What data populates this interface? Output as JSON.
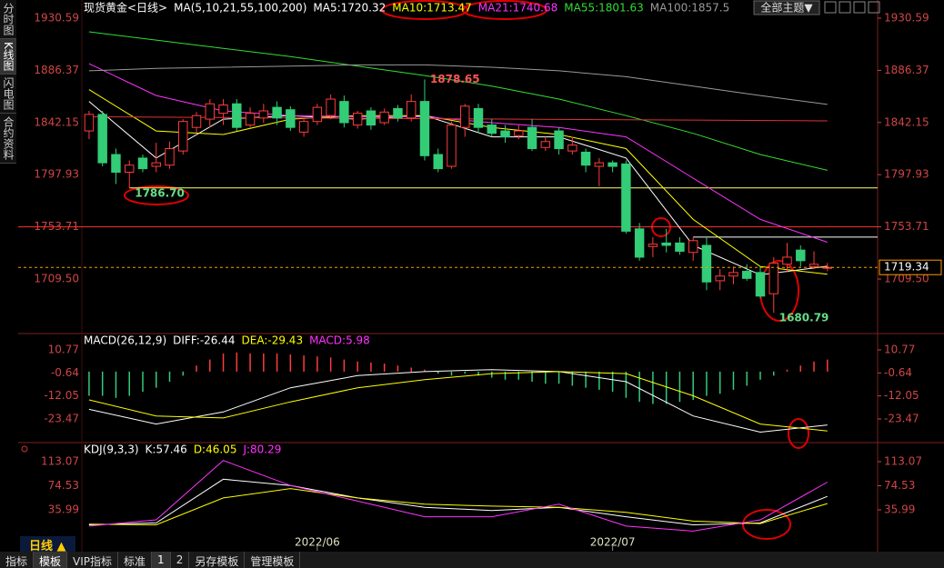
{
  "header": {
    "theme_button": "全部主题▼"
  },
  "sidebar": [
    "分时图",
    "K线图",
    "闪电图",
    "合约资料"
  ],
  "bottom": {
    "period": "日线 ▲",
    "tabs": [
      "指标",
      "模板",
      "VIP指标",
      "标准",
      "1",
      "2",
      "另存模板",
      "管理模板"
    ]
  },
  "chart_data": [
    {
      "type": "candlestick",
      "title": "现货黄金<日线>",
      "indicator": "MA(5,10,21,55,100,200)",
      "xlim": [
        -5.28,
        58.74
      ],
      "ylim": [
        1664.8,
        1938.29
      ],
      "yticks": [
        {
          "value": 1709.5,
          "label": "1709.50"
        },
        1753.71,
        1797.93,
        1842.15,
        1886.37,
        1930.59
      ],
      "xticks": [
        {
          "value": 17,
          "label": "2022/06"
        },
        {
          "value": 39,
          "label": "2022/07"
        }
      ],
      "up_color": "#ff3c3c",
      "down_color": "#33cc77",
      "open": [
        1835,
        1849,
        1815,
        1800,
        1812,
        1805,
        1806,
        1818,
        1838,
        1845,
        1850,
        1858,
        1840,
        1846,
        1855,
        1853,
        1834,
        1843,
        1848,
        1860,
        1840,
        1852,
        1842,
        1854,
        1846,
        1860,
        1815,
        1805,
        1838,
        1854,
        1840,
        1835,
        1831,
        1838,
        1821,
        1835,
        1818,
        1817,
        1805,
        1808,
        1807,
        1752,
        1737,
        1740,
        1740,
        1732,
        1738,
        1708,
        1712,
        1716,
        1715,
        1697,
        1722,
        1734,
        1720,
        1719
      ],
      "close": [
        1849,
        1808,
        1800,
        1806,
        1803,
        1808,
        1820,
        1843,
        1848,
        1858,
        1857,
        1838,
        1850,
        1852,
        1846,
        1838,
        1843,
        1855,
        1862,
        1842,
        1850,
        1840,
        1851,
        1846,
        1860,
        1814,
        1803,
        1840,
        1856,
        1838,
        1833,
        1830,
        1835,
        1820,
        1826,
        1820,
        1823,
        1806,
        1808,
        1805,
        1750,
        1728,
        1739,
        1738,
        1733,
        1742,
        1707,
        1712,
        1715,
        1710,
        1695,
        1723,
        1728,
        1725,
        1722,
        1719.34
      ],
      "high": [
        1852,
        1852,
        1820,
        1810,
        1815,
        1825,
        1826,
        1845,
        1851,
        1862,
        1862,
        1862,
        1855,
        1858,
        1860,
        1856,
        1846,
        1858,
        1866,
        1865,
        1852,
        1855,
        1854,
        1857,
        1866,
        1878.65,
        1820,
        1843,
        1858,
        1858,
        1845,
        1840,
        1840,
        1845,
        1830,
        1838,
        1830,
        1820,
        1812,
        1810,
        1810,
        1757,
        1745,
        1752,
        1745,
        1745,
        1745,
        1718,
        1720,
        1722,
        1720,
        1728,
        1740,
        1738,
        1733,
        1723
      ],
      "low": [
        1828,
        1805,
        1790,
        1786.7,
        1800,
        1800,
        1803,
        1815,
        1833,
        1838,
        1840,
        1835,
        1838,
        1842,
        1840,
        1835,
        1830,
        1840,
        1845,
        1838,
        1837,
        1836,
        1840,
        1843,
        1843,
        1810,
        1800,
        1803,
        1830,
        1833,
        1830,
        1825,
        1828,
        1818,
        1818,
        1815,
        1815,
        1800,
        1788,
        1800,
        1748,
        1725,
        1728,
        1732,
        1730,
        1725,
        1700,
        1700,
        1705,
        1708,
        1693,
        1680.79,
        1715,
        1720,
        1718,
        1716
      ],
      "series": [
        {
          "name": "MA5",
          "legend": "MA5:1720.32",
          "color": "#ffffff",
          "x": [
            0,
            5,
            10,
            15,
            20,
            25,
            30,
            35,
            40,
            45,
            50,
            55
          ],
          "values": [
            1860,
            1812,
            1845,
            1848,
            1845,
            1848,
            1830,
            1830,
            1812,
            1738,
            1713,
            1720.32
          ]
        },
        {
          "name": "MA10",
          "legend": "MA10:1713.47",
          "color": "#ffff00",
          "x": [
            0,
            5,
            10,
            15,
            20,
            25,
            30,
            35,
            40,
            45,
            50,
            55
          ],
          "values": [
            1870,
            1835,
            1832,
            1845,
            1848,
            1848,
            1838,
            1832,
            1820,
            1760,
            1720,
            1713.47
          ]
        },
        {
          "name": "MA21",
          "legend": "MA21:1740.68",
          "color": "#ff33ff",
          "x": [
            0,
            5,
            10,
            15,
            20,
            25,
            30,
            35,
            40,
            45,
            50,
            55
          ],
          "values": [
            1892,
            1865,
            1852,
            1848,
            1847,
            1847,
            1842,
            1838,
            1830,
            1795,
            1760,
            1740.68
          ]
        },
        {
          "name": "MA55",
          "legend": "MA55:1801.63",
          "color": "#33dd33",
          "x": [
            0,
            5,
            10,
            15,
            20,
            25,
            30,
            35,
            40,
            45,
            50,
            55
          ],
          "values": [
            1919,
            1912,
            1905,
            1898,
            1890,
            1882,
            1873,
            1862,
            1848,
            1833,
            1815,
            1801.63
          ]
        },
        {
          "name": "MA100",
          "legend": "MA100:1857.5",
          "color": "#999999",
          "x": [
            0,
            5,
            10,
            15,
            20,
            25,
            30,
            35,
            40,
            45,
            50,
            55
          ],
          "values": [
            1886,
            1888,
            1889,
            1890,
            1891,
            1891,
            1889,
            1886,
            1881,
            1873,
            1865,
            1857.5
          ]
        },
        {
          "color": "#dd3333",
          "x": [
            0,
            55
          ],
          "values": [
            1847,
            1843.5
          ]
        }
      ],
      "hlines": [
        {
          "value": 1786.7,
          "from": 3,
          "color": "#ffff66"
        },
        {
          "value": 1753.71,
          "from": -5.28,
          "color": "#ff3333"
        },
        {
          "value": 1745,
          "from": 45,
          "color": "#ffffff"
        }
      ],
      "last_color": "#ff9900",
      "annotations": [
        {
          "x": 3,
          "value": 1786.7,
          "label": "1786.70",
          "color": "#66dd88"
        },
        {
          "x": 25,
          "value": 1878.65,
          "color": "#ff5555"
        },
        {
          "x": 51,
          "value": 1680.79,
          "color": "#66dd88"
        }
      ]
    },
    {
      "type": "macd",
      "title": "MACD(26,12,9)",
      "xlim": [
        -5.28,
        58.74
      ],
      "ylim": [
        -34.29,
        17.53
      ],
      "yticks": [
        -23.47,
        -12.05,
        -0.64,
        10.77
      ],
      "up_color": "#ff3c3c",
      "down_color": "#33cc77",
      "series": [
        {
          "name": "DIFF",
          "legend": "DIFF:-26.44",
          "color": "#ffffff",
          "x": [
            0,
            5,
            10,
            15,
            20,
            25,
            30,
            35,
            40,
            45,
            50,
            55
          ],
          "values": [
            -18.7,
            -26,
            -20,
            -8,
            -2,
            0,
            1,
            0,
            -5,
            -22,
            -30,
            -26.44
          ]
        },
        {
          "name": "DEA",
          "legend": "DEA:-29.43",
          "color": "#ffff00",
          "x": [
            0,
            5,
            10,
            15,
            20,
            25,
            30,
            35,
            40,
            45,
            50,
            55
          ],
          "values": [
            -14,
            -22,
            -23,
            -15,
            -8,
            -4,
            -1,
            0,
            -1,
            -12,
            -26,
            -29.43
          ]
        }
      ],
      "histogram": {
        "name": "MACD",
        "legend": "MACD:5.98",
        "color": "#ff33ff",
        "values": [
          -12,
          -12,
          -13,
          -12,
          -10,
          -8,
          -5,
          -2,
          3,
          6,
          9,
          9.5,
          9,
          9,
          9,
          8.5,
          8,
          7.5,
          7,
          6,
          5,
          4.5,
          4,
          3,
          2,
          1,
          -1,
          -2,
          -1,
          -2,
          -3,
          -4,
          -4,
          -5,
          -6,
          -6,
          -7,
          -8,
          -9,
          -10,
          -13,
          -15,
          -16,
          -16,
          -15,
          -14,
          -12,
          -11,
          -9,
          -7,
          -4,
          -2,
          1,
          3,
          5,
          5.98
        ]
      }
    },
    {
      "type": "kdj",
      "title": "KDJ(9,3,3)",
      "xlim": [
        -5.28,
        58.74
      ],
      "ylim": [
        -20.73,
        139.25
      ],
      "yticks": [
        35.99,
        74.53,
        113.07
      ],
      "series": [
        {
          "name": "K",
          "legend": "K:57.46",
          "color": "#ffffff",
          "x": [
            0,
            5,
            10,
            15,
            20,
            25,
            30,
            35,
            40,
            45,
            50,
            55
          ],
          "values": [
            12,
            15,
            85,
            75,
            55,
            40,
            35,
            40,
            25,
            12,
            15,
            57.46
          ]
        },
        {
          "name": "D",
          "legend": "D:46.05",
          "color": "#ffff00",
          "x": [
            0,
            5,
            10,
            15,
            20,
            25,
            30,
            35,
            40,
            45,
            50,
            55
          ],
          "values": [
            13,
            12,
            55,
            70,
            55,
            45,
            42,
            40,
            32,
            18,
            14,
            46.05
          ]
        },
        {
          "name": "J",
          "legend": "J:80.29",
          "color": "#ff33ff",
          "x": [
            0,
            5,
            10,
            15,
            20,
            25,
            30,
            35,
            40,
            45,
            50,
            55
          ],
          "values": [
            10,
            20,
            115,
            75,
            50,
            25,
            25,
            45,
            10,
            2,
            20,
            80.29
          ]
        }
      ]
    }
  ]
}
